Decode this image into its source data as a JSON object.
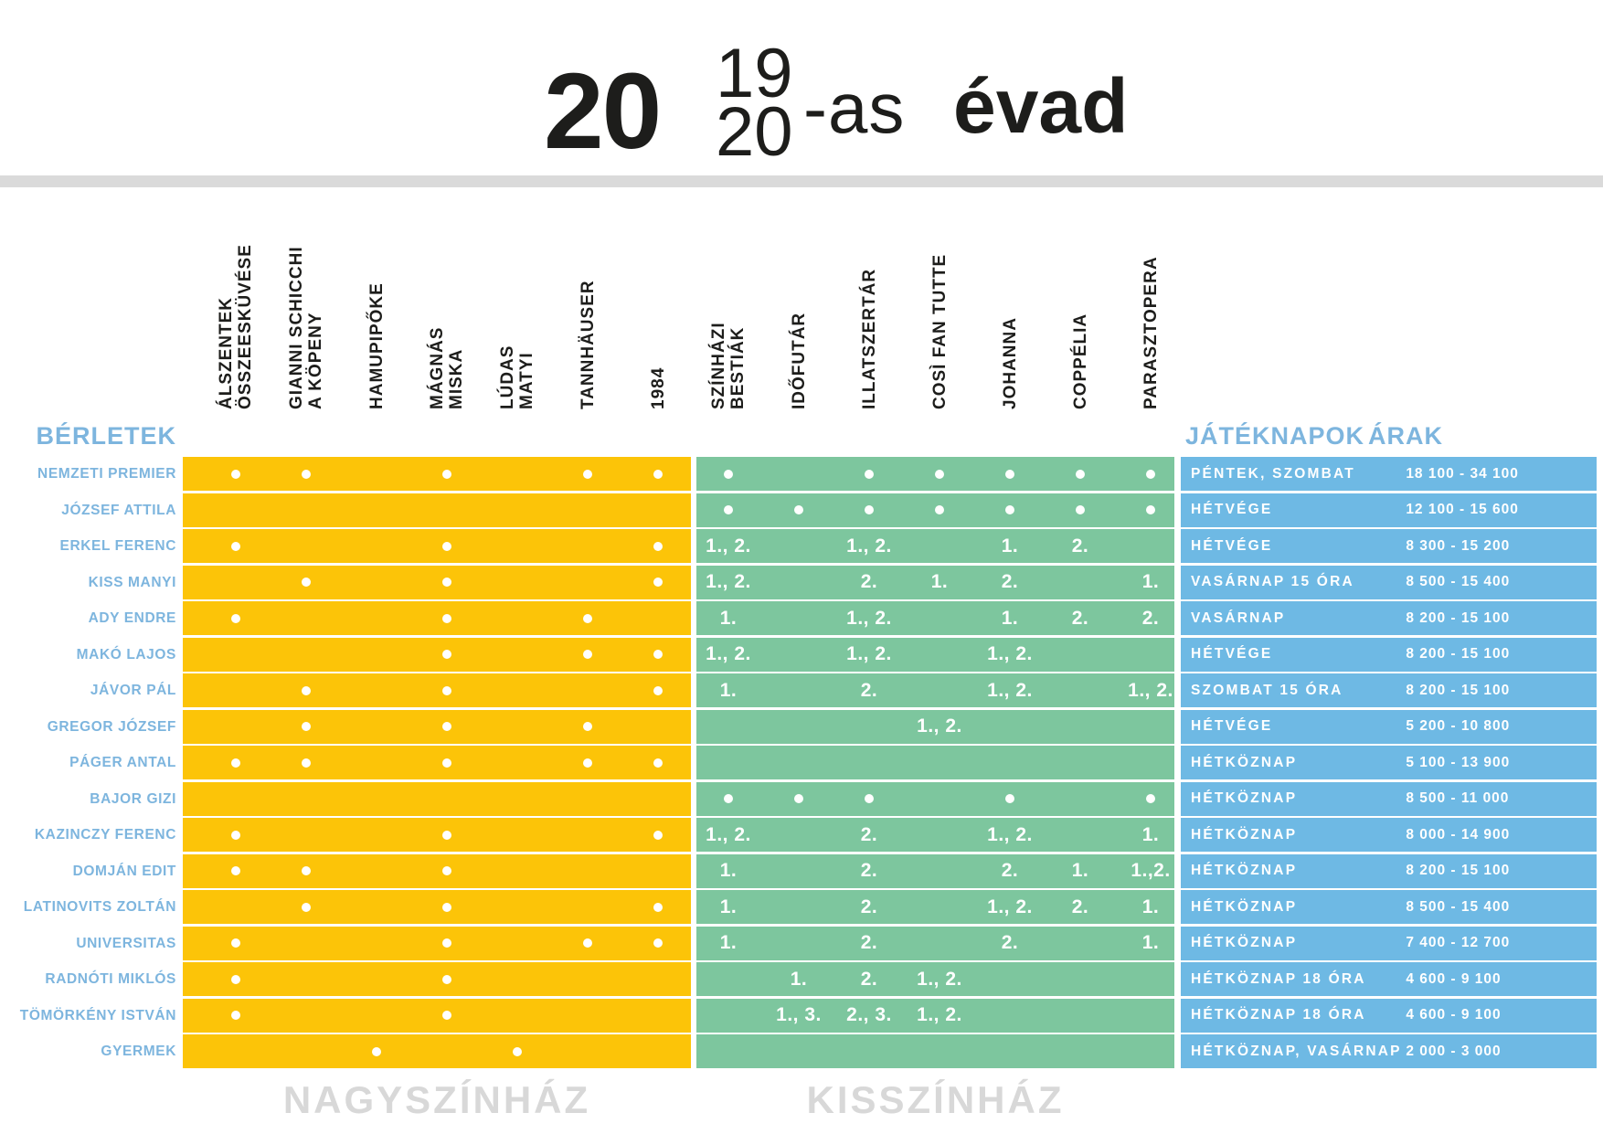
{
  "title": {
    "big": "20",
    "frac_top": "19",
    "frac_bottom": "20",
    "suffix": "-as",
    "season_word": "évad"
  },
  "colors": {
    "yellow": "#fcc408",
    "green": "#7dc69e",
    "blue": "#6eb9e4",
    "label_blue": "#7db5de",
    "footer_gray": "#d8d8d8",
    "divider_gray": "#dadada",
    "ink": "#1d1d1b",
    "dot_white": "#ffffff"
  },
  "table": {
    "berletek_label": "BÉRLETEK",
    "jateknapok_label": "JÁTÉKNAPOK",
    "arak_label": "ÁRAK",
    "nagyszinhaz_columns": [
      {
        "lines": [
          "ÁLSZENTEK",
          "ÖSSZEESKÜVÉSE"
        ]
      },
      {
        "lines": [
          "GIANNI SCHICCHI",
          "A KÖPENY"
        ]
      },
      {
        "lines": [
          "HAMUPIPŐKE"
        ]
      },
      {
        "lines": [
          "MÁGNÁS",
          "MISKA"
        ]
      },
      {
        "lines": [
          "LÚDAS",
          "MATYI"
        ]
      },
      {
        "lines": [
          "TANNHÄUSER"
        ]
      },
      {
        "lines": [
          "1984"
        ]
      }
    ],
    "kisszinhaz_columns": [
      {
        "lines": [
          "SZÍNHÁZI",
          "BESTIÁK"
        ]
      },
      {
        "lines": [
          "IDŐFUTÁR"
        ]
      },
      {
        "lines": [
          "ILLATSZERTÁR"
        ]
      },
      {
        "lines": [
          "COSÌ FAN TUTTE"
        ]
      },
      {
        "lines": [
          "JOHANNA"
        ]
      },
      {
        "lines": [
          "COPPÉLIA"
        ]
      },
      {
        "lines": [
          "PARASZTOPERA"
        ]
      }
    ],
    "rows": [
      {
        "label": "NEMZETI PREMIER",
        "nagyszinhaz": [
          "dot",
          "dot",
          "",
          "dot",
          "",
          "dot",
          "dot"
        ],
        "kisszinhaz": [
          "dot",
          "",
          "dot",
          "dot",
          "dot",
          "dot",
          "dot"
        ],
        "jateknapok": "PÉNTEK, SZOMBAT",
        "arak": "18 100 - 34 100"
      },
      {
        "label": "JÓZSEF ATTILA",
        "nagyszinhaz": [
          "",
          "",
          "",
          "",
          "",
          "",
          ""
        ],
        "kisszinhaz": [
          "dot",
          "dot",
          "dot",
          "dot",
          "dot",
          "dot",
          "dot"
        ],
        "jateknapok": "HÉTVÉGE",
        "arak": "12 100 - 15 600"
      },
      {
        "label": "ERKEL FERENC",
        "nagyszinhaz": [
          "dot",
          "",
          "",
          "dot",
          "",
          "",
          "dot"
        ],
        "kisszinhaz": [
          "1., 2.",
          "",
          "1., 2.",
          "",
          "1.",
          "2.",
          ""
        ],
        "jateknapok": "HÉTVÉGE",
        "arak": "8 300 - 15 200"
      },
      {
        "label": "KISS MANYI",
        "nagyszinhaz": [
          "",
          "dot",
          "",
          "dot",
          "",
          "",
          "dot"
        ],
        "kisszinhaz": [
          "1., 2.",
          "",
          "2.",
          "1.",
          "2.",
          "",
          "1."
        ],
        "jateknapok": "VASÁRNAP 15 ÓRA",
        "arak": "8 500 - 15 400"
      },
      {
        "label": "ADY ENDRE",
        "nagyszinhaz": [
          "dot",
          "",
          "",
          "dot",
          "",
          "dot",
          ""
        ],
        "kisszinhaz": [
          "1.",
          "",
          "1., 2.",
          "",
          "1.",
          "2.",
          "2."
        ],
        "jateknapok": "VASÁRNAP",
        "arak": "8 200 - 15 100"
      },
      {
        "label": "MAKÓ LAJOS",
        "nagyszinhaz": [
          "",
          "",
          "",
          "dot",
          "",
          "dot",
          "dot"
        ],
        "kisszinhaz": [
          "1., 2.",
          "",
          "1., 2.",
          "",
          "1., 2.",
          "",
          ""
        ],
        "jateknapok": "HÉTVÉGE",
        "arak": "8 200 - 15 100"
      },
      {
        "label": "JÁVOR PÁL",
        "nagyszinhaz": [
          "",
          "dot",
          "",
          "dot",
          "",
          "",
          "dot"
        ],
        "kisszinhaz": [
          "1.",
          "",
          "2.",
          "",
          "1., 2.",
          "",
          "1., 2."
        ],
        "jateknapok": "SZOMBAT 15 ÓRA",
        "arak": "8 200 - 15 100"
      },
      {
        "label": "GREGOR JÓZSEF",
        "nagyszinhaz": [
          "",
          "dot",
          "",
          "dot",
          "",
          "dot",
          ""
        ],
        "kisszinhaz": [
          "",
          "",
          "",
          "1., 2.",
          "",
          "",
          ""
        ],
        "jateknapok": "HÉTVÉGE",
        "arak": "5 200 - 10 800"
      },
      {
        "label": "PÁGER ANTAL",
        "nagyszinhaz": [
          "dot",
          "dot",
          "",
          "dot",
          "",
          "dot",
          "dot"
        ],
        "kisszinhaz": [
          "",
          "",
          "",
          "",
          "",
          "",
          ""
        ],
        "jateknapok": "HÉTKÖZNAP",
        "arak": "5 100 - 13 900"
      },
      {
        "label": "BAJOR GIZI",
        "nagyszinhaz": [
          "",
          "",
          "",
          "",
          "",
          "",
          ""
        ],
        "kisszinhaz": [
          "dot",
          "dot",
          "dot",
          "",
          "dot",
          "",
          "dot"
        ],
        "jateknapok": "HÉTKÖZNAP",
        "arak": "8 500 - 11 000"
      },
      {
        "label": "KAZINCZY FERENC",
        "nagyszinhaz": [
          "dot",
          "",
          "",
          "dot",
          "",
          "",
          "dot"
        ],
        "kisszinhaz": [
          "1., 2.",
          "",
          "2.",
          "",
          "1., 2.",
          "",
          "1."
        ],
        "jateknapok": "HÉTKÖZNAP",
        "arak": "8 000 - 14 900"
      },
      {
        "label": "DOMJÁN EDIT",
        "nagyszinhaz": [
          "dot",
          "dot",
          "",
          "dot",
          "",
          "",
          ""
        ],
        "kisszinhaz": [
          "1.",
          "",
          "2.",
          "",
          "2.",
          "1.",
          "1.,2."
        ],
        "jateknapok": "HÉTKÖZNAP",
        "arak": "8 200 - 15 100"
      },
      {
        "label": "LATINOVITS ZOLTÁN",
        "nagyszinhaz": [
          "",
          "dot",
          "",
          "dot",
          "",
          "",
          "dot"
        ],
        "kisszinhaz": [
          "1.",
          "",
          "2.",
          "",
          "1., 2.",
          "2.",
          "1."
        ],
        "jateknapok": "HÉTKÖZNAP",
        "arak": "8 500 - 15 400"
      },
      {
        "label": "UNIVERSITAS",
        "nagyszinhaz": [
          "dot",
          "",
          "",
          "dot",
          "",
          "dot",
          "dot"
        ],
        "kisszinhaz": [
          "1.",
          "",
          "2.",
          "",
          "2.",
          "",
          "1."
        ],
        "jateknapok": "HÉTKÖZNAP",
        "arak": "7 400 - 12 700"
      },
      {
        "label": "RADNÓTI MIKLÓS",
        "nagyszinhaz": [
          "dot",
          "",
          "",
          "dot",
          "",
          "",
          ""
        ],
        "kisszinhaz": [
          "",
          "1.",
          "2.",
          "1., 2.",
          "",
          "",
          ""
        ],
        "jateknapok": "HÉTKÖZNAP 18 ÓRA",
        "arak": "4 600 - 9 100"
      },
      {
        "label": "TÖMÖRKÉNY ISTVÁN",
        "nagyszinhaz": [
          "dot",
          "",
          "",
          "dot",
          "",
          "",
          ""
        ],
        "kisszinhaz": [
          "",
          "1., 3.",
          "2., 3.",
          "1., 2.",
          "",
          "",
          ""
        ],
        "jateknapok": "HÉTKÖZNAP 18 ÓRA",
        "arak": "4 600 - 9 100"
      },
      {
        "label": "GYERMEK",
        "nagyszinhaz": [
          "",
          "",
          "dot",
          "",
          "dot",
          "",
          ""
        ],
        "kisszinhaz": [
          "",
          "",
          "",
          "",
          "",
          "",
          ""
        ],
        "jateknapok": "HÉTKÖZNAP, VASÁRNAP",
        "arak": "2 000 - 3 000"
      }
    ]
  },
  "footers": {
    "nagyszinhaz": "NAGYSZÍNHÁZ",
    "kisszinhaz": "KISSZÍNHÁZ"
  }
}
